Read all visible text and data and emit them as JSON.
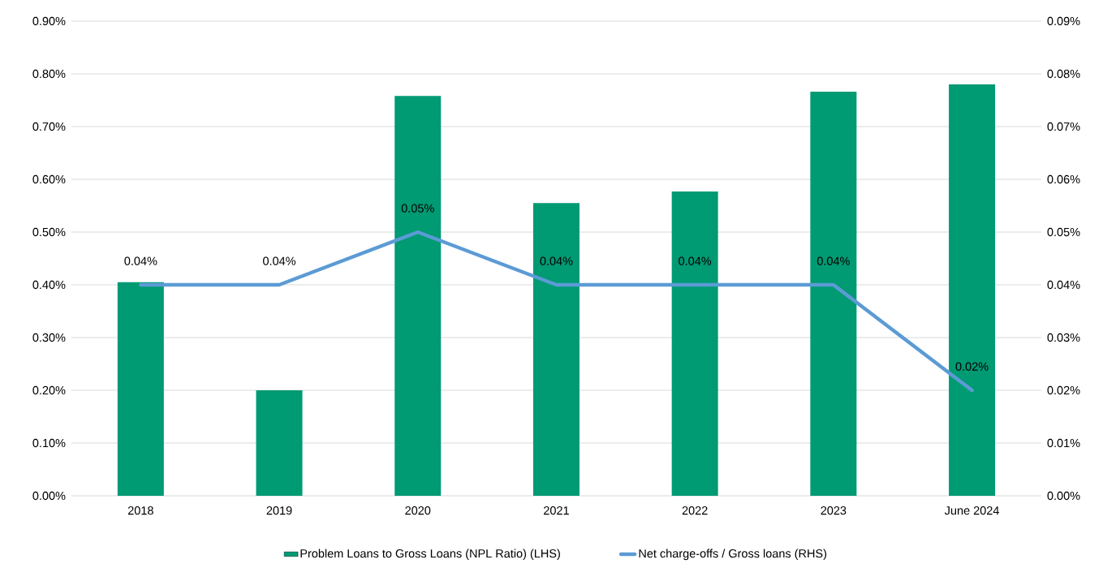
{
  "chart_data": {
    "type": "bar",
    "categories": [
      "2018",
      "2019",
      "2020",
      "2021",
      "2022",
      "2023",
      "June 2024"
    ],
    "series": [
      {
        "name": "Problem Loans to Gross Loans (NPL Ratio) (LHS)",
        "color": "#009a73",
        "values": [
          0.405,
          0.2,
          0.758,
          0.555,
          0.577,
          0.766,
          0.78
        ]
      },
      {
        "name": "Net charge-offs / Gross loans (RHS)",
        "type": "line",
        "axis": "y2",
        "color": "#5b9bd5",
        "values": [
          0.04,
          0.04,
          0.05,
          0.04,
          0.04,
          0.04,
          0.02
        ],
        "value_labels": [
          "0.04%",
          "0.04%",
          "0.05%",
          "0.04%",
          "0.04%",
          "0.04%",
          "0.02%"
        ]
      }
    ],
    "ylim": [
      0,
      0.9
    ],
    "yticks": [
      {
        "value": 0,
        "label": "0.00%"
      },
      {
        "value": 0.1,
        "label": "0.10%"
      },
      {
        "value": 0.2,
        "label": "0.20%"
      },
      {
        "value": 0.3,
        "label": "0.30%"
      },
      {
        "value": 0.4,
        "label": "0.40%"
      },
      {
        "value": 0.5,
        "label": "0.50%"
      },
      {
        "value": 0.6,
        "label": "0.60%"
      },
      {
        "value": 0.7,
        "label": "0.70%"
      },
      {
        "value": 0.8,
        "label": "0.80%"
      },
      {
        "value": 0.9,
        "label": "0.90%"
      }
    ],
    "y2lim": [
      0,
      0.09
    ],
    "y2ticks": [
      {
        "value": 0,
        "label": "0.00%"
      },
      {
        "value": 0.01,
        "label": "0.01%"
      },
      {
        "value": 0.02,
        "label": "0.02%"
      },
      {
        "value": 0.03,
        "label": "0.03%"
      },
      {
        "value": 0.04,
        "label": "0.04%"
      },
      {
        "value": 0.05,
        "label": "0.05%"
      },
      {
        "value": 0.06,
        "label": "0.06%"
      },
      {
        "value": 0.07,
        "label": "0.07%"
      },
      {
        "value": 0.08,
        "label": "0.08%"
      },
      {
        "value": 0.09,
        "label": "0.09%"
      }
    ],
    "grid": "y",
    "legend": "bottom"
  }
}
